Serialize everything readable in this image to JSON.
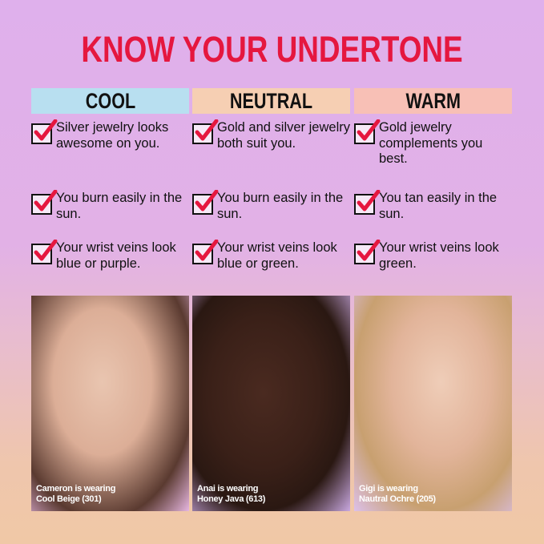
{
  "title": "KNOW YOUR UNDERTONE",
  "columns": [
    {
      "heading": "COOL",
      "color": "#b8dff0",
      "items": [
        "Silver jewelry looks awesome on you.",
        "You burn easily in the sun.",
        "Your wrist veins look blue or purple."
      ],
      "caption1": "Cameron is wearing",
      "caption2": "Cool Beige (301)"
    },
    {
      "heading": "NEUTRAL",
      "color": "#f6cfb3",
      "items": [
        "Gold and silver jewelry both suit you.",
        "You burn easily in the sun.",
        "Your wrist veins look blue or green."
      ],
      "caption1": "Anai is wearing",
      "caption2": "Honey Java (613)"
    },
    {
      "heading": "WARM",
      "color": "#f8c0b6",
      "items": [
        "Gold jewelry complements you best.",
        "You tan easily in the sun.",
        "Your wrist veins look green."
      ],
      "caption1": "Gigi is wearing",
      "caption2": "Nautral Ochre (205)"
    }
  ],
  "icons": {
    "check": "checked-box-icon"
  },
  "colors": {
    "accent": "#e5173f"
  }
}
